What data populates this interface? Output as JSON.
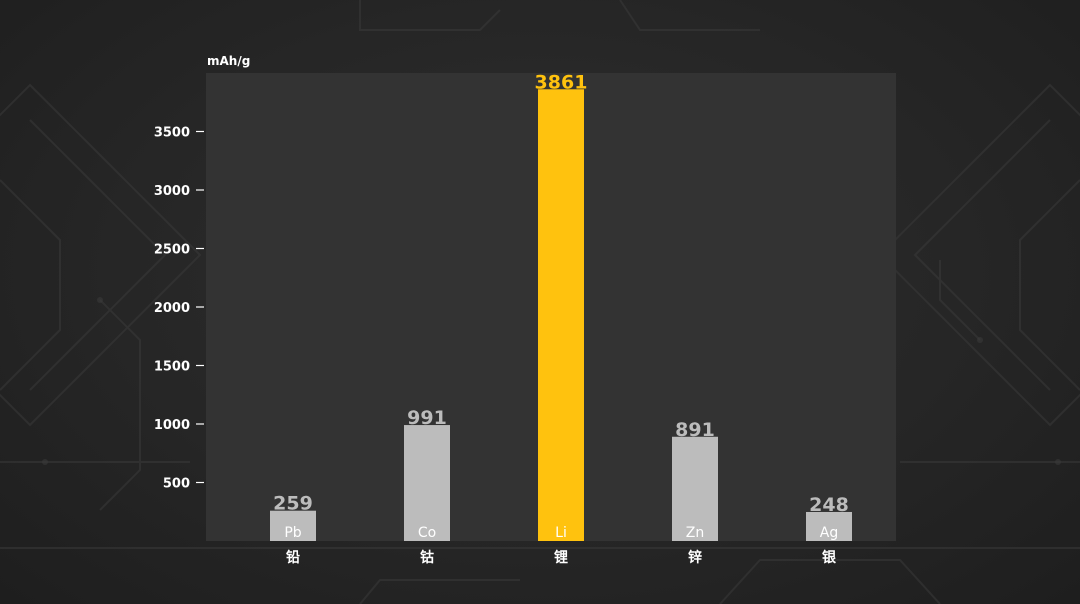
{
  "chart_data": {
    "type": "bar",
    "ylabel": "mAh/g",
    "categories": [
      "铅",
      "钴",
      "锂",
      "锌",
      "银"
    ],
    "symbols": [
      "Pb",
      "Co",
      "Li",
      "Zn",
      "Ag"
    ],
    "values": [
      259,
      991,
      3861,
      891,
      248
    ],
    "ylim": [
      0,
      4000
    ],
    "yticks": [
      500,
      1000,
      1500,
      2000,
      2500,
      3000,
      3500
    ],
    "highlight_index": 2,
    "colors": {
      "bar": "#bcbcbc",
      "highlight": "#ffc20e",
      "value_label": "#bcbcbc",
      "highlight_label": "#ffc20e",
      "plot_bg": "#333333",
      "axis_text": "#ffffff"
    }
  }
}
